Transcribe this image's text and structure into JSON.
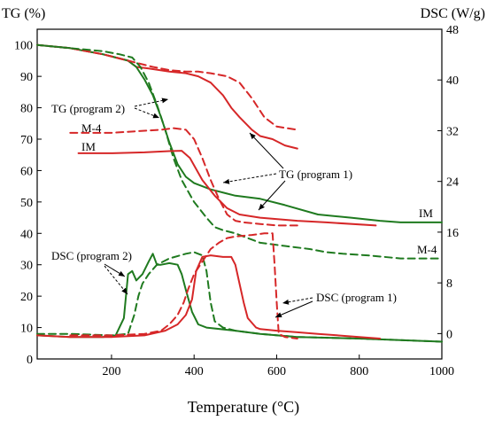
{
  "chart_data": {
    "type": "line",
    "xlabel": "Temperature (°C)",
    "ylabel_left": "TG (%)",
    "ylabel_right": "DSC (W/g)",
    "xlim": [
      20,
      1000
    ],
    "ylim_left": [
      0,
      105
    ],
    "ylim_right": [
      -4,
      48
    ],
    "x_ticks": [
      200,
      400,
      600,
      800,
      1000
    ],
    "y_left_ticks": [
      0,
      10,
      20,
      30,
      40,
      50,
      60,
      70,
      80,
      90,
      100
    ],
    "y_right_ticks": [
      0,
      8,
      16,
      24,
      32,
      40,
      48
    ],
    "grid": false,
    "colors": {
      "IM": "#d62728",
      "M-4": "#1f7a1f"
    },
    "series": [
      {
        "key": "im_tg_p1",
        "color_key": "IM",
        "dashed": false,
        "points": [
          [
            20,
            100
          ],
          [
            100,
            99
          ],
          [
            180,
            97
          ],
          [
            240,
            95
          ],
          [
            260,
            93
          ],
          [
            290,
            92.5
          ],
          [
            340,
            91.5
          ],
          [
            380,
            91
          ],
          [
            410,
            90
          ],
          [
            440,
            88
          ],
          [
            470,
            84
          ],
          [
            490,
            80
          ],
          [
            510,
            77
          ],
          [
            540,
            73
          ],
          [
            560,
            71
          ],
          [
            590,
            70
          ],
          [
            620,
            68
          ],
          [
            650,
            67
          ]
        ]
      },
      {
        "key": "m4_tg_p1",
        "color_key": "M-4",
        "dashed": false,
        "points": [
          [
            20,
            100
          ],
          [
            100,
            99
          ],
          [
            180,
            97
          ],
          [
            240,
            95
          ],
          [
            260,
            93
          ],
          [
            280,
            89
          ],
          [
            300,
            84
          ],
          [
            320,
            77
          ],
          [
            340,
            69
          ],
          [
            360,
            62
          ],
          [
            380,
            58
          ],
          [
            400,
            56
          ],
          [
            440,
            54
          ],
          [
            500,
            52
          ],
          [
            560,
            51
          ],
          [
            620,
            49
          ],
          [
            700,
            46
          ],
          [
            780,
            45
          ],
          [
            850,
            44
          ],
          [
            900,
            43.5
          ],
          [
            1000,
            43.5
          ]
        ]
      },
      {
        "key": "im_tg_p2",
        "color_key": "IM",
        "dashed": true,
        "points": [
          [
            20,
            100
          ],
          [
            100,
            99
          ],
          [
            180,
            97
          ],
          [
            240,
            95
          ],
          [
            270,
            94
          ],
          [
            300,
            93
          ],
          [
            340,
            92
          ],
          [
            380,
            91.5
          ],
          [
            410,
            91.5
          ],
          [
            440,
            91
          ],
          [
            480,
            90
          ],
          [
            510,
            88
          ],
          [
            540,
            83
          ],
          [
            570,
            77
          ],
          [
            600,
            74
          ],
          [
            650,
            73
          ]
        ]
      },
      {
        "key": "m4_tg_p2",
        "color_key": "M-4",
        "dashed": true,
        "points": [
          [
            20,
            100
          ],
          [
            100,
            99
          ],
          [
            180,
            98
          ],
          [
            220,
            97
          ],
          [
            250,
            96
          ],
          [
            270,
            93
          ],
          [
            290,
            88
          ],
          [
            310,
            81
          ],
          [
            330,
            73
          ],
          [
            350,
            64
          ],
          [
            370,
            57
          ],
          [
            400,
            50
          ],
          [
            430,
            45
          ],
          [
            450,
            42
          ],
          [
            470,
            41
          ],
          [
            500,
            40
          ],
          [
            560,
            37
          ],
          [
            620,
            36
          ],
          [
            680,
            35
          ],
          [
            720,
            34
          ],
          [
            760,
            33.5
          ],
          [
            820,
            33
          ],
          [
            900,
            32
          ],
          [
            1000,
            32
          ]
        ]
      },
      {
        "key": "im_tg_rescaled",
        "color_key": "IM",
        "dashed": false,
        "points": [
          [
            120,
            65.5
          ],
          [
            200,
            65.5
          ],
          [
            280,
            65.8
          ],
          [
            340,
            66.2
          ],
          [
            370,
            66.3
          ],
          [
            390,
            64
          ],
          [
            420,
            57
          ],
          [
            450,
            52
          ],
          [
            480,
            48
          ],
          [
            510,
            46
          ],
          [
            560,
            45
          ],
          [
            650,
            44
          ],
          [
            720,
            43.5
          ],
          [
            840,
            42.5
          ]
        ]
      },
      {
        "key": "m4_tg_rescaled",
        "color_key": "IM",
        "dashed": true,
        "points": [
          [
            100,
            72
          ],
          [
            150,
            72
          ],
          [
            200,
            72
          ],
          [
            260,
            72.5
          ],
          [
            320,
            73
          ],
          [
            350,
            73.5
          ],
          [
            380,
            73
          ],
          [
            400,
            70
          ],
          [
            420,
            64
          ],
          [
            440,
            57
          ],
          [
            460,
            51
          ],
          [
            480,
            46
          ],
          [
            500,
            44
          ],
          [
            520,
            43.5
          ],
          [
            560,
            43
          ],
          [
            600,
            42.5
          ],
          [
            650,
            42.5
          ]
        ]
      },
      {
        "key": "m4_dsc_p2",
        "color_key": "M-4",
        "dashed": false,
        "points": [
          [
            20,
            7.5
          ],
          [
            100,
            7
          ],
          [
            180,
            7
          ],
          [
            210,
            7.5
          ],
          [
            230,
            13
          ],
          [
            240,
            27
          ],
          [
            250,
            28
          ],
          [
            260,
            25
          ],
          [
            275,
            27
          ],
          [
            290,
            31
          ],
          [
            300,
            33.5
          ],
          [
            310,
            30
          ],
          [
            320,
            30
          ],
          [
            340,
            30.5
          ],
          [
            360,
            30
          ],
          [
            370,
            27
          ],
          [
            380,
            22
          ],
          [
            395,
            15
          ],
          [
            410,
            11
          ],
          [
            430,
            10
          ],
          [
            500,
            9
          ],
          [
            560,
            8
          ],
          [
            650,
            7
          ],
          [
            800,
            6.5
          ],
          [
            900,
            6
          ],
          [
            1000,
            5.5
          ]
        ]
      },
      {
        "key": "m4_dsc_p1",
        "color_key": "M-4",
        "dashed": true,
        "points": [
          [
            20,
            8
          ],
          [
            100,
            8
          ],
          [
            200,
            7.5
          ],
          [
            240,
            8
          ],
          [
            255,
            14
          ],
          [
            265,
            20
          ],
          [
            275,
            24
          ],
          [
            290,
            27
          ],
          [
            310,
            30
          ],
          [
            340,
            32
          ],
          [
            380,
            33.5
          ],
          [
            400,
            34
          ],
          [
            420,
            33
          ],
          [
            430,
            28
          ],
          [
            440,
            18
          ],
          [
            450,
            12
          ],
          [
            470,
            10
          ],
          [
            500,
            9
          ],
          [
            560,
            8
          ],
          [
            650,
            7
          ],
          [
            800,
            6.5
          ],
          [
            1000,
            5.5
          ]
        ]
      },
      {
        "key": "im_dsc_p1",
        "color_key": "IM",
        "dashed": false,
        "points": [
          [
            20,
            7.5
          ],
          [
            100,
            7
          ],
          [
            200,
            7
          ],
          [
            280,
            7.5
          ],
          [
            330,
            9
          ],
          [
            360,
            11
          ],
          [
            380,
            14
          ],
          [
            395,
            19
          ],
          [
            405,
            28
          ],
          [
            420,
            32.5
          ],
          [
            440,
            33
          ],
          [
            470,
            32.5
          ],
          [
            490,
            32.5
          ],
          [
            500,
            30
          ],
          [
            510,
            24
          ],
          [
            520,
            18
          ],
          [
            530,
            13
          ],
          [
            550,
            10
          ],
          [
            560,
            9.5
          ],
          [
            600,
            9
          ],
          [
            650,
            8.5
          ],
          [
            700,
            8
          ],
          [
            800,
            7
          ],
          [
            850,
            6.5
          ]
        ]
      },
      {
        "key": "im_dsc_p2",
        "color_key": "IM",
        "dashed": true,
        "points": [
          [
            100,
            7.5
          ],
          [
            200,
            7.5
          ],
          [
            280,
            8
          ],
          [
            320,
            9
          ],
          [
            340,
            11
          ],
          [
            360,
            14
          ],
          [
            375,
            18
          ],
          [
            385,
            22
          ],
          [
            400,
            27
          ],
          [
            420,
            31
          ],
          [
            440,
            35
          ],
          [
            460,
            37
          ],
          [
            480,
            38.5
          ],
          [
            500,
            39
          ],
          [
            540,
            39.5
          ],
          [
            570,
            40
          ],
          [
            590,
            40
          ],
          [
            595,
            30
          ],
          [
            600,
            18
          ],
          [
            605,
            8
          ],
          [
            620,
            7
          ],
          [
            650,
            6.5
          ]
        ]
      }
    ],
    "labels": {
      "tg_program2": "TG (program 2)",
      "tg_program1": "TG (program 1)",
      "dsc_program2": "DSC (program 2)",
      "dsc_program1": "DSC (program 1)",
      "im_tg": "IM",
      "m4_tg": "M-4",
      "im_end": "IM",
      "m4_end": "M-4"
    }
  }
}
